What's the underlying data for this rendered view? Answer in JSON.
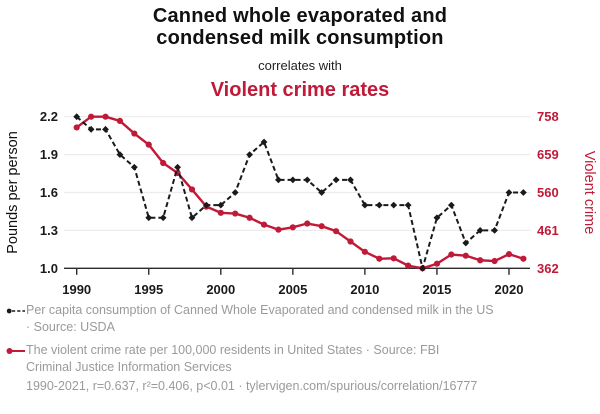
{
  "header": {
    "title_lines": [
      "Canned whole evaporated and",
      "condensed milk consumption"
    ],
    "connector": "correlates with",
    "secondary_title": "Violent crime rates"
  },
  "legend": [
    {
      "marker": "black-dot-dashed-line",
      "lines": [
        "Per capita consumption of Canned Whole Evaporated and condensed milk in the US",
        "· Source: USDA"
      ]
    },
    {
      "marker": "red-dot-solid-line",
      "lines": [
        "The violent crime rate per 100,000 residents in United States · Source: FBI",
        "Criminal Justice Information Services"
      ]
    }
  ],
  "footer": {
    "stats": "1990-2021, r=0.637, r²=0.406, p<0.01 · tylervigen.com/spurious/correlation/16777"
  },
  "colors": {
    "accent_red": "#c01a38",
    "series_black": "#1a1a1a",
    "gray_text": "#9a9a9a",
    "gridline": "#ececec",
    "axis_line": "#2b2b2b"
  },
  "chart_data": {
    "type": "line",
    "title": "Canned whole evaporated and condensed milk consumption correlates with Violent crime rates",
    "x": [
      1990,
      1991,
      1992,
      1993,
      1994,
      1995,
      1996,
      1997,
      1998,
      1999,
      2000,
      2001,
      2002,
      2003,
      2004,
      2005,
      2006,
      2007,
      2008,
      2009,
      2010,
      2011,
      2012,
      2013,
      2014,
      2015,
      2016,
      2017,
      2018,
      2019,
      2020,
      2021
    ],
    "x_ticks": [
      1990,
      1995,
      2000,
      2005,
      2010,
      2015,
      2020
    ],
    "grid": true,
    "legend_position": "bottom",
    "left_axis": {
      "label": "Pounds per person",
      "min": 1.0,
      "max": 2.2,
      "ticks": [
        2.2,
        1.9,
        1.6,
        1.3,
        1.0
      ],
      "tick_decimals": 1
    },
    "right_axis": {
      "label": "Violent crime",
      "min": 362,
      "max": 758,
      "ticks": [
        758,
        659,
        560,
        461,
        362
      ],
      "tick_decimals": 0
    },
    "series": [
      {
        "name": "Per capita consumption of Canned Whole Evaporated and condensed milk in the US · Source: USDA",
        "axis": "right_is_false_left",
        "yaxis": "left",
        "color": "#c01a38-placeholder-ignored",
        "values": []
      }
    ],
    "series_real": "see below",
    "series2": [
      {
        "name": "Per capita consumption of Canned Whole Evaporated and condensed milk in the US · Source: USDA",
        "yaxis": "left",
        "style": "dashed",
        "marker": "diamond",
        "color": "#1a1a1a",
        "values": [
          2.2,
          2.1,
          2.1,
          1.9,
          1.8,
          1.4,
          1.4,
          1.8,
          1.4,
          1.5,
          1.5,
          1.6,
          1.9,
          2.0,
          1.7,
          1.7,
          1.7,
          1.6,
          1.7,
          1.7,
          1.5,
          1.5,
          1.5,
          1.5,
          1.0,
          1.4,
          1.5,
          1.2,
          1.3,
          1.3,
          1.6,
          1.6
        ]
      },
      {
        "name": "The violent crime rate per 100,000 residents in United States · Source: FBI Criminal Justice Information Services",
        "yaxis": "right",
        "style": "solid",
        "marker": "circle",
        "color": "#c01a38",
        "values": [
          730,
          758,
          758,
          747,
          714,
          685,
          637,
          611,
          568,
          523,
          507,
          505,
          494,
          476,
          463,
          469,
          479,
          472,
          459,
          432,
          405,
          387,
          388,
          369,
          362,
          374,
          398,
          395,
          383,
          381,
          399,
          387
        ]
      }
    ]
  }
}
